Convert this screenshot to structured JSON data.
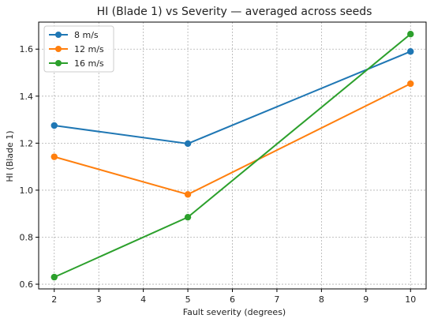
{
  "chart_data": {
    "type": "line",
    "title": "HI (Blade 1) vs Severity — averaged across seeds",
    "xlabel": "Fault severity (degrees)",
    "ylabel": "HI (Blade 1)",
    "x": [
      2,
      5,
      10
    ],
    "xlim": [
      1.65,
      10.35
    ],
    "ylim": [
      0.58,
      1.715
    ],
    "xticks": [
      2,
      3,
      4,
      5,
      6,
      7,
      8,
      9,
      10
    ],
    "yticks": [
      0.6,
      0.8,
      1.0,
      1.2,
      1.4,
      1.6
    ],
    "grid": true,
    "legend_position": "top-left",
    "series": [
      {
        "name": "8 m/s",
        "color": "#1f77b4",
        "values": [
          1.275,
          1.198,
          1.59
        ]
      },
      {
        "name": "12 m/s",
        "color": "#ff7f0e",
        "values": [
          1.142,
          0.982,
          1.453
        ]
      },
      {
        "name": "16 m/s",
        "color": "#2ca02c",
        "values": [
          0.63,
          0.885,
          1.664
        ]
      }
    ]
  }
}
